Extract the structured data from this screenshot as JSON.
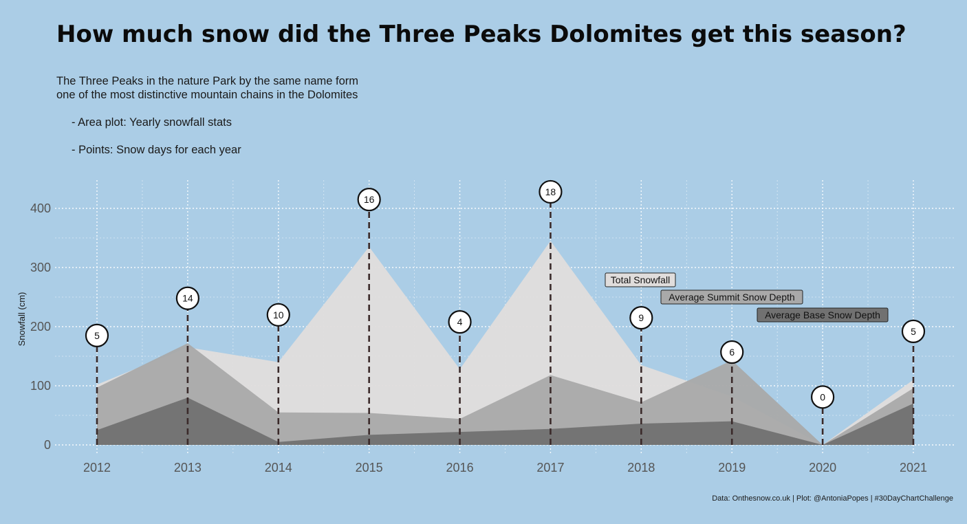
{
  "title": "How much snow did the Three Peaks Dolomites get this season?",
  "subtitle": {
    "line1": "The Three Peaks in the nature Park by the same name form",
    "line2": "one of the most distinctive mountain chains in the Dolomites",
    "bullet1": "- Area plot: Yearly snowfall stats",
    "bullet2": "- Points: Snow days for each year"
  },
  "caption": "Data: Onthesnow.co.uk | Plot: @AntoniaPopes | #30DayChartChallenge",
  "colors": {
    "background": "#abcde6",
    "total": "#e0dddc",
    "summit": "#a9a9a9",
    "base": "#717171",
    "stem": "#3a2a2a"
  },
  "chart_data": {
    "type": "area",
    "x": [
      2012,
      2013,
      2014,
      2015,
      2016,
      2017,
      2018,
      2019,
      2020,
      2021
    ],
    "xlabel": "",
    "ylabel": "Snowfall (cm)",
    "ylim": [
      -18,
      450
    ],
    "yticks": [
      0,
      100,
      200,
      300,
      400
    ],
    "grid": true,
    "series": [
      {
        "name": "Total Snowfall",
        "color": "#e0dddc",
        "values": [
          102,
          165,
          140,
          335,
          128,
          345,
          135,
          82,
          0,
          110
        ]
      },
      {
        "name": "Average Summit Snow Depth",
        "color": "#a9a9a9",
        "values": [
          97,
          172,
          55,
          54,
          44,
          118,
          72,
          143,
          0,
          96
        ]
      },
      {
        "name": "Average Base Snow Depth",
        "color": "#717171",
        "values": [
          25,
          80,
          5,
          17,
          22,
          27,
          36,
          40,
          0,
          70
        ]
      }
    ],
    "points": {
      "name": "Snow days",
      "values": [
        5,
        14,
        10,
        16,
        4,
        18,
        9,
        6,
        0,
        5
      ],
      "y_position": [
        185,
        248,
        220,
        415,
        208,
        428,
        215,
        157,
        81,
        192
      ]
    },
    "legend_placement": "center-right"
  }
}
